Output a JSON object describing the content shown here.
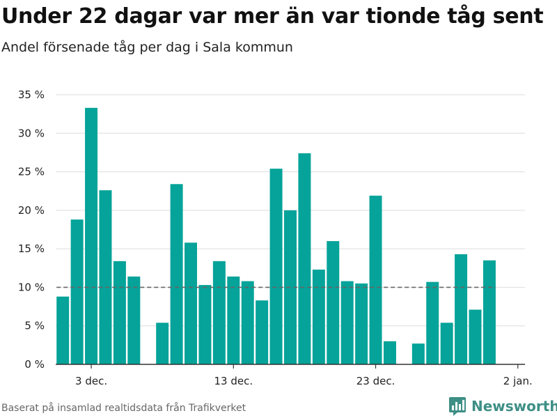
{
  "header": {
    "title": "Under 22 dagar var mer än var tionde tåg sent",
    "subtitle": "Andel försenade tåg per dag i Sala kommun"
  },
  "footer": {
    "source": "Baserat på insamlad realtidsdata från Trafikverket",
    "brand": "Newsworthy"
  },
  "colors": {
    "bar": "#05a399",
    "reference_line": "#666666",
    "grid": "#dddddd",
    "axis": "#333333",
    "brand": "#3e8f86"
  },
  "chart_data": {
    "type": "bar",
    "x": [
      "2023-12-01",
      "2023-12-02",
      "2023-12-03",
      "2023-12-04",
      "2023-12-05",
      "2023-12-06",
      "2023-12-07",
      "2023-12-08",
      "2023-12-09",
      "2023-12-10",
      "2023-12-11",
      "2023-12-12",
      "2023-12-13",
      "2023-12-14",
      "2023-12-15",
      "2023-12-16",
      "2023-12-17",
      "2023-12-18",
      "2023-12-19",
      "2023-12-20",
      "2023-12-21",
      "2023-12-22",
      "2023-12-23",
      "2023-12-24",
      "2023-12-25",
      "2023-12-26",
      "2023-12-27",
      "2023-12-28",
      "2023-12-29",
      "2023-12-30",
      "2023-12-31",
      "2024-01-01",
      "2024-01-02"
    ],
    "values": [
      8.8,
      18.8,
      33.3,
      22.6,
      13.4,
      11.4,
      null,
      5.4,
      23.4,
      15.8,
      10.3,
      13.4,
      11.4,
      10.8,
      8.3,
      25.4,
      20.0,
      27.4,
      12.3,
      16.0,
      10.8,
      10.5,
      21.9,
      3.0,
      null,
      2.7,
      10.7,
      5.4,
      14.3,
      7.1,
      13.5,
      null,
      null
    ],
    "reference_line": 10,
    "ylim": [
      0,
      35
    ],
    "y_ticks": [
      0,
      5,
      10,
      15,
      20,
      25,
      30,
      35
    ],
    "y_tick_labels": [
      "0 %",
      "5 %",
      "10 %",
      "15 %",
      "20 %",
      "25 %",
      "30 %",
      "35 %"
    ],
    "x_ticks": [
      "2023-12-03",
      "2023-12-13",
      "2023-12-23",
      "2024-01-02"
    ],
    "x_tick_labels": [
      "3 dec.",
      "13 dec.",
      "23 dec.",
      "2 jan."
    ],
    "unit": "%",
    "grid": "horizontal",
    "xlabel": "",
    "ylabel": ""
  }
}
